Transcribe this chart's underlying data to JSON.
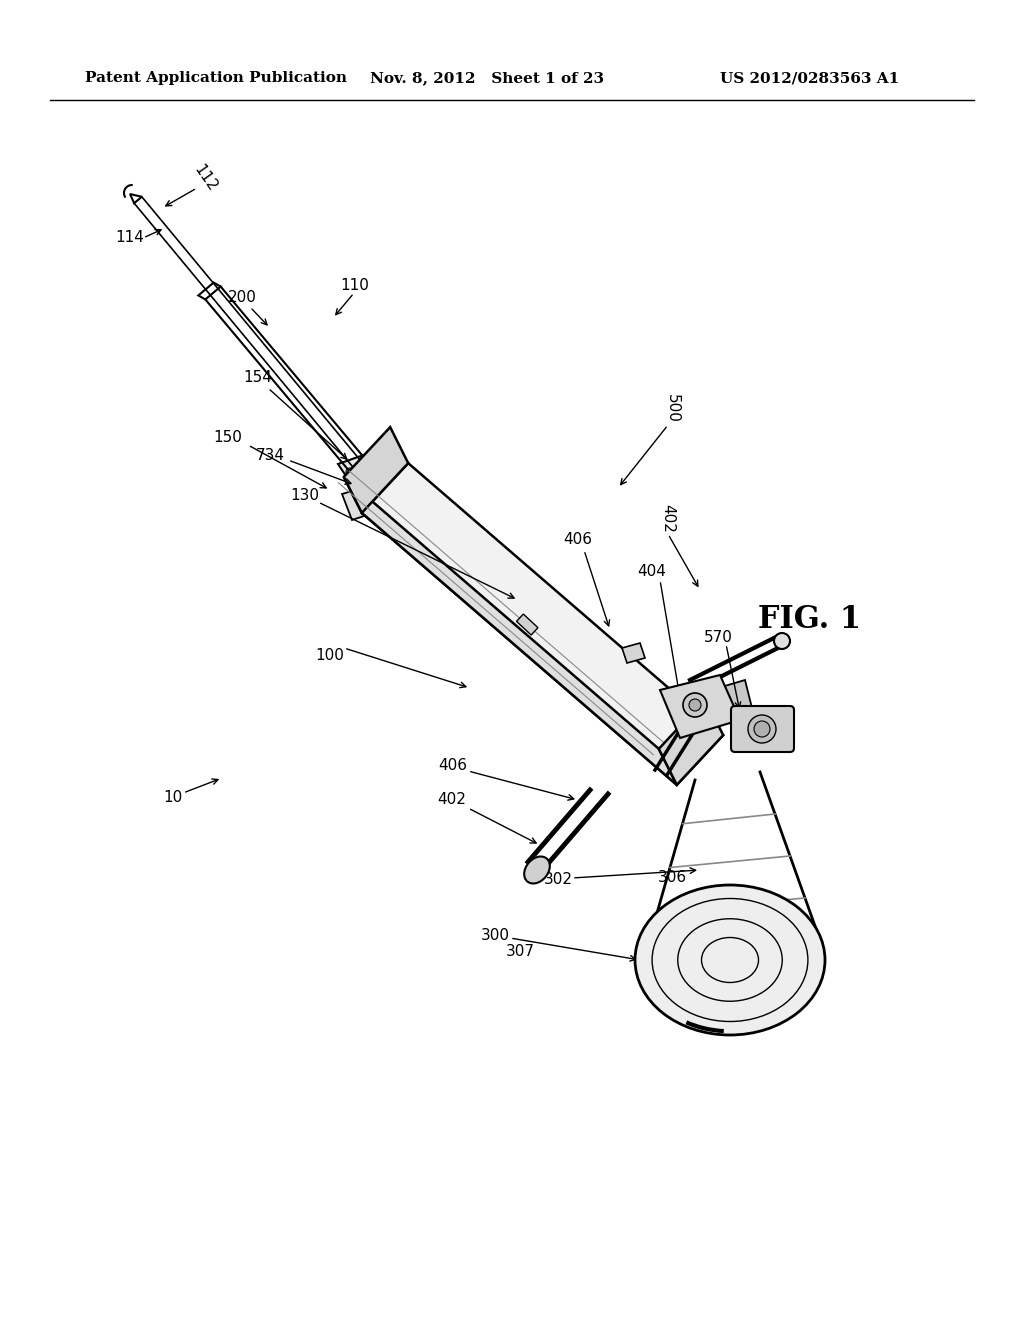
{
  "bg_color": "#ffffff",
  "line_color": "#000000",
  "header_left": "Patent Application Publication",
  "header_mid": "Nov. 8, 2012   Sheet 1 of 23",
  "header_right": "US 2012/0283563 A1",
  "fig_label": "FIG. 1"
}
